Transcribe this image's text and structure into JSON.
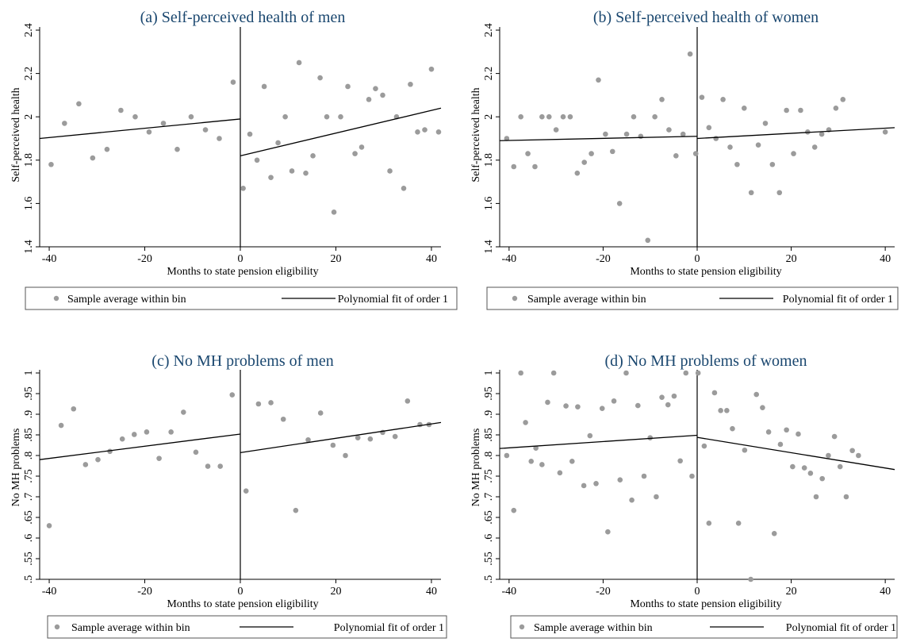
{
  "legend": {
    "dot_label": "Sample average within bin",
    "line_label": "Polynomial fit of order 1",
    "dot_color": "#9b9b9b",
    "line_color": "#000000"
  },
  "chart_data": [
    {
      "type": "scatter",
      "title": "(a) Self-perceived health of men",
      "xlabel": "Months to state pension eligibility",
      "ylabel": "Self-perceived health",
      "xlim": [
        -42,
        42
      ],
      "ylim": [
        1.4,
        2.4
      ],
      "xticks": [
        -40,
        -20,
        0,
        20,
        40
      ],
      "yticks": [
        1.4,
        1.6,
        1.8,
        2,
        2.2,
        2.4
      ],
      "ytick_labels": [
        "1.4",
        "1.6",
        "1.8",
        "2",
        "2.2",
        "2.4"
      ],
      "grid": false,
      "legend_position": "bottom",
      "points": [
        [
          -39.6,
          1.78
        ],
        [
          -36.8,
          1.97
        ],
        [
          -33.8,
          2.06
        ],
        [
          -30.9,
          1.81
        ],
        [
          -27.9,
          1.85
        ],
        [
          -25.0,
          2.03
        ],
        [
          -22.0,
          2.0
        ],
        [
          -19.1,
          1.93
        ],
        [
          -16.1,
          1.97
        ],
        [
          -13.2,
          1.85
        ],
        [
          -10.3,
          2.0
        ],
        [
          -7.3,
          1.94
        ],
        [
          -4.4,
          1.9
        ],
        [
          -1.5,
          2.16
        ],
        [
          0.6,
          1.67
        ],
        [
          2.0,
          1.92
        ],
        [
          3.5,
          1.8
        ],
        [
          5.0,
          2.14
        ],
        [
          6.4,
          1.72
        ],
        [
          7.9,
          1.88
        ],
        [
          9.4,
          2.0
        ],
        [
          10.8,
          1.75
        ],
        [
          12.3,
          2.25
        ],
        [
          13.7,
          1.74
        ],
        [
          15.2,
          1.82
        ],
        [
          16.7,
          2.18
        ],
        [
          18.1,
          2.0
        ],
        [
          19.6,
          1.56
        ],
        [
          21.0,
          2.0
        ],
        [
          22.5,
          2.14
        ],
        [
          24.0,
          1.83
        ],
        [
          25.4,
          1.86
        ],
        [
          26.9,
          2.08
        ],
        [
          28.3,
          2.13
        ],
        [
          29.8,
          2.1
        ],
        [
          31.3,
          1.75
        ],
        [
          32.7,
          2.0
        ],
        [
          34.2,
          1.67
        ],
        [
          35.6,
          2.15
        ],
        [
          37.1,
          1.93
        ],
        [
          38.6,
          1.94
        ],
        [
          40.0,
          2.22
        ],
        [
          41.5,
          1.93
        ]
      ],
      "fits": [
        {
          "x": [
            -42,
            0
          ],
          "y": [
            1.9,
            1.99
          ]
        },
        {
          "x": [
            0,
            42
          ],
          "y": [
            1.82,
            2.04
          ]
        }
      ]
    },
    {
      "type": "scatter",
      "title": "(b) Self-perceived health of women",
      "xlabel": "Months to state pension eligibility",
      "ylabel": "Self-perceived health",
      "xlim": [
        -42,
        42
      ],
      "ylim": [
        1.4,
        2.4
      ],
      "xticks": [
        -40,
        -20,
        0,
        20,
        40
      ],
      "yticks": [
        1.4,
        1.6,
        1.8,
        2,
        2.2,
        2.4
      ],
      "ytick_labels": [
        "1.4",
        "1.6",
        "1.8",
        "2",
        "2.2",
        "2.4"
      ],
      "grid": false,
      "legend_position": "bottom",
      "points": [
        [
          -40.5,
          1.9
        ],
        [
          -39.0,
          1.77
        ],
        [
          -37.5,
          2.0
        ],
        [
          -36.0,
          1.83
        ],
        [
          -34.5,
          1.77
        ],
        [
          -33.0,
          2.0
        ],
        [
          -31.5,
          2.0
        ],
        [
          -30.0,
          1.94
        ],
        [
          -28.5,
          2.0
        ],
        [
          -27.0,
          2.0
        ],
        [
          -25.5,
          1.74
        ],
        [
          -24.0,
          1.79
        ],
        [
          -22.5,
          1.83
        ],
        [
          -21.0,
          2.17
        ],
        [
          -19.5,
          1.92
        ],
        [
          -18.0,
          1.84
        ],
        [
          -16.5,
          1.6
        ],
        [
          -15.0,
          1.92
        ],
        [
          -13.5,
          2.0
        ],
        [
          -12.0,
          1.91
        ],
        [
          -10.5,
          1.43
        ],
        [
          -9.0,
          2.0
        ],
        [
          -7.5,
          2.08
        ],
        [
          -6.0,
          1.94
        ],
        [
          -4.5,
          1.82
        ],
        [
          -3.0,
          1.92
        ],
        [
          -1.5,
          2.29
        ],
        [
          -0.3,
          1.83
        ],
        [
          1.0,
          2.09
        ],
        [
          2.5,
          1.95
        ],
        [
          4.0,
          1.9
        ],
        [
          5.5,
          2.08
        ],
        [
          7.0,
          1.86
        ],
        [
          8.5,
          1.78
        ],
        [
          10.0,
          2.04
        ],
        [
          11.5,
          1.65
        ],
        [
          13.0,
          1.87
        ],
        [
          14.5,
          1.97
        ],
        [
          16.0,
          1.78
        ],
        [
          17.5,
          1.65
        ],
        [
          19.0,
          2.03
        ],
        [
          20.5,
          1.83
        ],
        [
          22.0,
          2.03
        ],
        [
          23.5,
          1.93
        ],
        [
          25.0,
          1.86
        ],
        [
          26.5,
          1.92
        ],
        [
          28.0,
          1.94
        ],
        [
          29.5,
          2.04
        ],
        [
          31.0,
          2.08
        ],
        [
          40.0,
          1.93
        ]
      ],
      "fits": [
        {
          "x": [
            -42,
            0
          ],
          "y": [
            1.89,
            1.91
          ]
        },
        {
          "x": [
            0,
            42
          ],
          "y": [
            1.9,
            1.95
          ]
        }
      ]
    },
    {
      "type": "scatter",
      "title": "(c) No MH problems of men",
      "xlabel": "Months to state pension eligibility",
      "ylabel": "No MH problems",
      "xlim": [
        -42,
        42
      ],
      "ylim": [
        0.5,
        1.0
      ],
      "xticks": [
        -40,
        -20,
        0,
        20,
        40
      ],
      "yticks": [
        0.5,
        0.55,
        0.6,
        0.65,
        0.7,
        0.75,
        0.8,
        0.85,
        0.9,
        0.95,
        1.0
      ],
      "ytick_labels": [
        ".5",
        ".55",
        ".6",
        ".65",
        ".7",
        ".75",
        ".8",
        ".85",
        ".9",
        ".95",
        "1"
      ],
      "grid": false,
      "legend_position": "bottom",
      "points": [
        [
          -40.0,
          0.63
        ],
        [
          -37.5,
          0.873
        ],
        [
          -34.9,
          0.913
        ],
        [
          -32.4,
          0.778
        ],
        [
          -29.8,
          0.79
        ],
        [
          -27.3,
          0.81
        ],
        [
          -24.7,
          0.84
        ],
        [
          -22.2,
          0.851
        ],
        [
          -19.6,
          0.857
        ],
        [
          -17.0,
          0.793
        ],
        [
          -14.5,
          0.857
        ],
        [
          -11.9,
          0.905
        ],
        [
          -9.3,
          0.808
        ],
        [
          -6.8,
          0.774
        ],
        [
          -4.2,
          0.774
        ],
        [
          -1.7,
          0.947
        ],
        [
          1.2,
          0.714
        ],
        [
          3.8,
          0.925
        ],
        [
          6.4,
          0.928
        ],
        [
          9.0,
          0.888
        ],
        [
          11.6,
          0.667
        ],
        [
          14.2,
          0.838
        ],
        [
          16.8,
          0.903
        ],
        [
          19.4,
          0.825
        ],
        [
          22.0,
          0.8
        ],
        [
          24.6,
          0.843
        ],
        [
          27.2,
          0.84
        ],
        [
          29.8,
          0.856
        ],
        [
          32.4,
          0.846
        ],
        [
          35.0,
          0.932
        ],
        [
          37.6,
          0.875
        ],
        [
          39.5,
          0.875
        ]
      ],
      "fits": [
        {
          "x": [
            -42,
            0
          ],
          "y": [
            0.79,
            0.852
          ]
        },
        {
          "x": [
            0,
            42
          ],
          "y": [
            0.807,
            0.88
          ]
        }
      ]
    },
    {
      "type": "scatter",
      "title": "(d) No MH problems of women",
      "xlabel": "Months to state pension eligibility",
      "ylabel": "No MH problems",
      "xlim": [
        -42,
        42
      ],
      "ylim": [
        0.5,
        1.0
      ],
      "xticks": [
        -40,
        -20,
        0,
        20,
        40
      ],
      "yticks": [
        0.5,
        0.55,
        0.6,
        0.65,
        0.7,
        0.75,
        0.8,
        0.85,
        0.9,
        0.95,
        1.0
      ],
      "ytick_labels": [
        ".5",
        ".55",
        ".6",
        ".65",
        ".7",
        ".75",
        ".8",
        ".85",
        ".9",
        ".95",
        "1"
      ],
      "grid": false,
      "legend_position": "bottom",
      "points": [
        [
          -40.5,
          0.8
        ],
        [
          -39.0,
          0.667
        ],
        [
          -37.5,
          1.0
        ],
        [
          -36.5,
          0.88
        ],
        [
          -35.3,
          0.786
        ],
        [
          -34.3,
          0.818
        ],
        [
          -33.0,
          0.778
        ],
        [
          -31.8,
          0.929
        ],
        [
          -30.5,
          1.0
        ],
        [
          -29.2,
          0.758
        ],
        [
          -27.9,
          0.92
        ],
        [
          -26.6,
          0.786
        ],
        [
          -25.4,
          0.918
        ],
        [
          -24.1,
          0.727
        ],
        [
          -22.8,
          0.848
        ],
        [
          -21.5,
          0.732
        ],
        [
          -20.2,
          0.914
        ],
        [
          -19.0,
          0.615
        ],
        [
          -17.7,
          0.932
        ],
        [
          -16.4,
          0.741
        ],
        [
          -15.1,
          1.0
        ],
        [
          -13.9,
          0.692
        ],
        [
          -12.6,
          0.921
        ],
        [
          -11.3,
          0.75
        ],
        [
          -10.0,
          0.843
        ],
        [
          -8.7,
          0.7
        ],
        [
          -7.5,
          0.941
        ],
        [
          -6.2,
          0.923
        ],
        [
          -4.9,
          0.944
        ],
        [
          -3.6,
          0.787
        ],
        [
          -2.4,
          1.0
        ],
        [
          -1.1,
          0.75
        ],
        [
          0.2,
          1.0
        ],
        [
          1.5,
          0.823
        ],
        [
          2.5,
          0.636
        ],
        [
          3.7,
          0.952
        ],
        [
          5.0,
          0.909
        ],
        [
          6.3,
          0.909
        ],
        [
          7.5,
          0.865
        ],
        [
          8.8,
          0.636
        ],
        [
          10.1,
          0.813
        ],
        [
          11.4,
          0.5
        ],
        [
          12.6,
          0.948
        ],
        [
          13.9,
          0.916
        ],
        [
          15.2,
          0.857
        ],
        [
          16.4,
          0.611
        ],
        [
          17.7,
          0.827
        ],
        [
          19.0,
          0.862
        ],
        [
          20.3,
          0.773
        ],
        [
          21.5,
          0.852
        ],
        [
          22.8,
          0.77
        ],
        [
          24.1,
          0.757
        ],
        [
          25.3,
          0.7
        ],
        [
          26.6,
          0.744
        ],
        [
          27.9,
          0.8
        ],
        [
          29.2,
          0.846
        ],
        [
          30.4,
          0.773
        ],
        [
          31.7,
          0.7
        ],
        [
          33.0,
          0.812
        ],
        [
          34.3,
          0.8
        ]
      ],
      "fits": [
        {
          "x": [
            -42,
            0
          ],
          "y": [
            0.817,
            0.849
          ]
        },
        {
          "x": [
            0,
            42
          ],
          "y": [
            0.844,
            0.766
          ]
        }
      ]
    }
  ]
}
